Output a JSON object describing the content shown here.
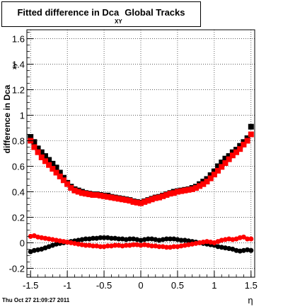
{
  "title": {
    "part1": "Fitted difference in Dca",
    "subscript": "XY",
    "part2": "Global Tracks"
  },
  "timestamp": "Thu Oct 27 21:09:27 2011",
  "chart_data": {
    "type": "scatter",
    "xlabel": "η",
    "ylabel": "difference in Dca",
    "ylabel_subscript": "xy",
    "xlim": [
      -1.55,
      1.55
    ],
    "ylim": [
      -0.27,
      1.67
    ],
    "xticks": [
      "-1.5",
      "-1",
      "-0.5",
      "0",
      "0.5",
      "1",
      "1.5"
    ],
    "yticks": [
      "-0.2",
      "0",
      "0.2",
      "0.4",
      "0.6",
      "0.8",
      "1",
      "1.2",
      "1.4",
      "1.6"
    ],
    "grid": true,
    "colors": {
      "black": "#000000",
      "red": "#ff0000"
    },
    "series": [
      {
        "color": "black",
        "x": [
          -1.5,
          -1.45,
          -1.4,
          -1.35,
          -1.3,
          -1.25,
          -1.2,
          -1.15,
          -1.1,
          -1.05,
          -1.0,
          -0.95,
          -0.9,
          -0.85,
          -0.8,
          -0.75,
          -0.7,
          -0.65,
          -0.6,
          -0.55,
          -0.5,
          -0.45,
          -0.4,
          -0.35,
          -0.3,
          -0.25,
          -0.2,
          -0.15,
          -0.1,
          -0.05,
          0.0,
          0.05,
          0.1,
          0.15,
          0.2,
          0.25,
          0.3,
          0.35,
          0.4,
          0.45,
          0.5,
          0.55,
          0.6,
          0.65,
          0.7,
          0.75,
          0.8,
          0.85,
          0.9,
          0.95,
          1.0,
          1.05,
          1.1,
          1.15,
          1.2,
          1.25,
          1.3,
          1.35,
          1.4,
          1.45,
          1.5
        ],
        "y": [
          0.83,
          0.79,
          0.74,
          0.71,
          0.68,
          0.65,
          0.62,
          0.59,
          0.55,
          0.51,
          0.47,
          0.44,
          0.42,
          0.41,
          0.4,
          0.39,
          0.385,
          0.38,
          0.38,
          0.375,
          0.37,
          0.37,
          0.36,
          0.355,
          0.35,
          0.345,
          0.34,
          0.335,
          0.325,
          0.32,
          0.315,
          0.325,
          0.335,
          0.345,
          0.355,
          0.36,
          0.37,
          0.38,
          0.39,
          0.4,
          0.405,
          0.41,
          0.415,
          0.42,
          0.43,
          0.44,
          0.46,
          0.48,
          0.5,
          0.53,
          0.56,
          0.6,
          0.63,
          0.66,
          0.68,
          0.71,
          0.73,
          0.76,
          0.79,
          0.82,
          0.91
        ]
      },
      {
        "color": "red",
        "x": [
          -1.5,
          -1.45,
          -1.4,
          -1.35,
          -1.3,
          -1.25,
          -1.2,
          -1.15,
          -1.1,
          -1.05,
          -1.0,
          -0.95,
          -0.9,
          -0.85,
          -0.8,
          -0.75,
          -0.7,
          -0.65,
          -0.6,
          -0.55,
          -0.5,
          -0.45,
          -0.4,
          -0.35,
          -0.3,
          -0.25,
          -0.2,
          -0.15,
          -0.1,
          -0.05,
          0.0,
          0.05,
          0.1,
          0.15,
          0.2,
          0.25,
          0.3,
          0.35,
          0.4,
          0.45,
          0.5,
          0.55,
          0.6,
          0.65,
          0.7,
          0.75,
          0.8,
          0.85,
          0.9,
          0.95,
          1.0,
          1.05,
          1.1,
          1.15,
          1.2,
          1.25,
          1.3,
          1.35,
          1.4,
          1.45,
          1.5
        ],
        "y": [
          0.8,
          0.75,
          0.71,
          0.67,
          0.64,
          0.61,
          0.58,
          0.55,
          0.52,
          0.49,
          0.46,
          0.43,
          0.41,
          0.4,
          0.39,
          0.385,
          0.38,
          0.375,
          0.375,
          0.37,
          0.365,
          0.36,
          0.355,
          0.35,
          0.345,
          0.34,
          0.335,
          0.33,
          0.32,
          0.315,
          0.31,
          0.32,
          0.33,
          0.34,
          0.35,
          0.355,
          0.365,
          0.375,
          0.385,
          0.39,
          0.4,
          0.405,
          0.41,
          0.415,
          0.42,
          0.43,
          0.445,
          0.46,
          0.48,
          0.505,
          0.535,
          0.565,
          0.595,
          0.625,
          0.655,
          0.685,
          0.71,
          0.735,
          0.77,
          0.8,
          0.85
        ]
      },
      {
        "color": "black",
        "x": [
          -1.5,
          -1.45,
          -1.4,
          -1.35,
          -1.3,
          -1.25,
          -1.2,
          -1.15,
          -1.1,
          -1.05,
          -1.0,
          -0.95,
          -0.9,
          -0.85,
          -0.8,
          -0.75,
          -0.7,
          -0.65,
          -0.6,
          -0.55,
          -0.5,
          -0.45,
          -0.4,
          -0.35,
          -0.3,
          -0.25,
          -0.2,
          -0.15,
          -0.1,
          -0.05,
          0.0,
          0.05,
          0.1,
          0.15,
          0.2,
          0.25,
          0.3,
          0.35,
          0.4,
          0.45,
          0.5,
          0.55,
          0.6,
          0.65,
          0.7,
          0.75,
          0.8,
          0.85,
          0.9,
          0.95,
          1.0,
          1.05,
          1.1,
          1.15,
          1.2,
          1.25,
          1.3,
          1.35,
          1.4,
          1.45,
          1.5
        ],
        "y": [
          -0.07,
          -0.06,
          -0.055,
          -0.05,
          -0.04,
          -0.03,
          -0.02,
          -0.01,
          -0.005,
          0.0,
          0.005,
          0.01,
          0.015,
          0.02,
          0.025,
          0.03,
          0.03,
          0.035,
          0.035,
          0.04,
          0.04,
          0.04,
          0.035,
          0.035,
          0.03,
          0.03,
          0.025,
          0.03,
          0.03,
          0.025,
          0.02,
          0.025,
          0.03,
          0.03,
          0.025,
          0.02,
          0.025,
          0.03,
          0.03,
          0.03,
          0.025,
          0.02,
          0.02,
          0.015,
          0.01,
          0.005,
          0.0,
          -0.005,
          -0.01,
          -0.015,
          -0.02,
          -0.03,
          -0.035,
          -0.04,
          -0.045,
          -0.05,
          -0.06,
          -0.065,
          -0.06,
          -0.055,
          -0.06
        ]
      },
      {
        "color": "red",
        "x": [
          -1.5,
          -1.45,
          -1.4,
          -1.35,
          -1.3,
          -1.25,
          -1.2,
          -1.15,
          -1.1,
          -1.05,
          -1.0,
          -0.95,
          -0.9,
          -0.85,
          -0.8,
          -0.75,
          -0.7,
          -0.65,
          -0.6,
          -0.55,
          -0.5,
          -0.45,
          -0.4,
          -0.35,
          -0.3,
          -0.25,
          -0.2,
          -0.15,
          -0.1,
          -0.05,
          0.0,
          0.05,
          0.1,
          0.15,
          0.2,
          0.25,
          0.3,
          0.35,
          0.4,
          0.45,
          0.5,
          0.55,
          0.6,
          0.65,
          0.7,
          0.75,
          0.8,
          0.85,
          0.9,
          0.95,
          1.0,
          1.05,
          1.1,
          1.15,
          1.2,
          1.25,
          1.3,
          1.35,
          1.4,
          1.45,
          1.5
        ],
        "y": [
          0.05,
          0.055,
          0.045,
          0.04,
          0.035,
          0.03,
          0.025,
          0.02,
          0.015,
          0.01,
          0.005,
          0.0,
          -0.005,
          -0.01,
          -0.015,
          -0.02,
          -0.02,
          -0.025,
          -0.025,
          -0.03,
          -0.03,
          -0.025,
          -0.025,
          -0.02,
          -0.02,
          -0.025,
          -0.02,
          -0.02,
          -0.015,
          -0.015,
          -0.02,
          -0.015,
          -0.02,
          -0.025,
          -0.025,
          -0.03,
          -0.03,
          -0.035,
          -0.035,
          -0.03,
          -0.03,
          -0.025,
          -0.02,
          -0.015,
          -0.01,
          -0.005,
          0.0,
          0.005,
          0.01,
          0.005,
          0.0,
          0.01,
          0.02,
          0.025,
          0.03,
          0.025,
          0.03,
          0.04,
          0.045,
          0.03,
          0.03
        ]
      }
    ]
  }
}
